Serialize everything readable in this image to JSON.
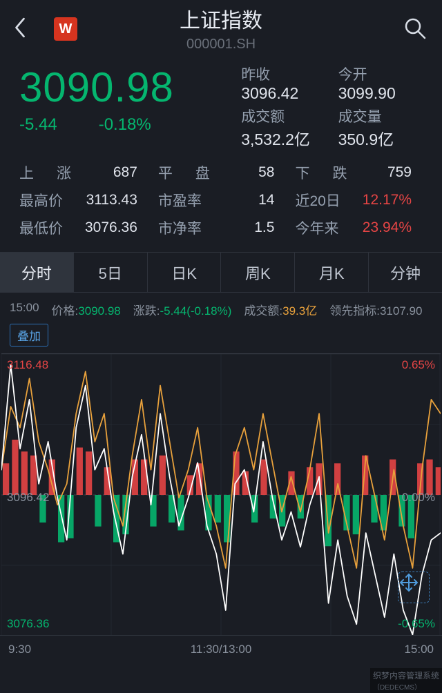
{
  "header": {
    "logo_letter": "W",
    "title": "上证指数",
    "code": "000001.SH"
  },
  "quote": {
    "price": "3090.98",
    "change_abs": "-5.44",
    "change_pct": "-0.18%",
    "price_color": "#05b66f",
    "side": {
      "prev_close_label": "昨收",
      "prev_close": "3096.42",
      "open_label": "今开",
      "open": "3099.90",
      "turnover_label": "成交额",
      "turnover": "3,532.2亿",
      "volume_label": "成交量",
      "volume": "350.9亿"
    },
    "grid": {
      "up_label": "上　涨",
      "up": "687",
      "flat_label": "平　盘",
      "flat": "58",
      "down_label": "下　跌",
      "down": "759",
      "high_label": "最高价",
      "high": "3113.43",
      "pe_label": "市盈率",
      "pe": "14",
      "d20_label": "近20日",
      "d20": "12.17%",
      "low_label": "最低价",
      "low": "3076.36",
      "pb_label": "市净率",
      "pb": "1.5",
      "ytd_label": "今年来",
      "ytd": "23.94%"
    }
  },
  "tabs": {
    "items": [
      "分时",
      "5日",
      "日K",
      "周K",
      "月K",
      "分钟"
    ],
    "active_index": 0
  },
  "info_line": {
    "time_label": "15:00",
    "price_label": "价格:",
    "price_val": "3090.98",
    "chg_label": "涨跌:",
    "chg_val": "-5.44(-0.18%)",
    "turnover_label": "成交额:",
    "turnover_val": "39.3亿",
    "lead_label": "领先指标:",
    "lead_val": "3107.90"
  },
  "overlay_btn": "叠加",
  "chart": {
    "type": "intraday-line",
    "background_color": "#1a1d24",
    "grid_color": "#2e333c",
    "center_value": 3096.42,
    "ylim": [
      3076.36,
      3116.48
    ],
    "pct_range": "0.65%",
    "x_labels": {
      "start": "9:30",
      "mid": "11:30/13:00",
      "end": "15:00"
    },
    "top_left": "3116.48",
    "top_right": "0.65%",
    "mid_left": "3096.42",
    "mid_right": "0.00%",
    "bot_left": "3076.36",
    "bot_right": "-0.65%",
    "series": {
      "price_line": {
        "color": "#ffffff",
        "width": 1.8,
        "values": [
          3100,
          3115,
          3103,
          3110,
          3098,
          3104,
          3096,
          3090,
          3106,
          3112,
          3100,
          3103,
          3094,
          3088,
          3099,
          3105,
          3095,
          3108,
          3099,
          3092,
          3096,
          3101,
          3092,
          3088,
          3080,
          3098,
          3100,
          3094,
          3104,
          3096,
          3090,
          3094,
          3089,
          3095,
          3099,
          3081,
          3090,
          3082,
          3078,
          3091,
          3085,
          3079,
          3088,
          3080,
          3076.5,
          3085,
          3090,
          3091
        ]
      },
      "lead_line": {
        "color": "#e8a13c",
        "width": 1.8,
        "values": [
          3100,
          3109,
          3106,
          3113,
          3104,
          3100,
          3095,
          3098,
          3108,
          3114,
          3104,
          3108,
          3096,
          3092,
          3102,
          3110,
          3100,
          3112,
          3104,
          3096,
          3100,
          3106,
          3096,
          3092,
          3086,
          3102,
          3106,
          3100,
          3108,
          3101,
          3094,
          3099,
          3094,
          3100,
          3108,
          3091,
          3098,
          3092,
          3086,
          3102,
          3096,
          3090,
          3100,
          3092,
          3086,
          3100,
          3110,
          3108
        ]
      },
      "volume_bars": {
        "up_color": "#e64545",
        "down_color": "#05b66f",
        "values": [
          40,
          70,
          55,
          50,
          -35,
          45,
          -60,
          -55,
          60,
          55,
          -40,
          35,
          -60,
          -50,
          45,
          45,
          -40,
          50,
          -35,
          -45,
          25,
          40,
          -45,
          -35,
          -60,
          55,
          30,
          -35,
          45,
          -30,
          -40,
          30,
          -30,
          35,
          40,
          -65,
          40,
          -45,
          -50,
          50,
          -35,
          -45,
          45,
          -40,
          -55,
          40,
          45,
          35
        ]
      }
    }
  },
  "footer_mark": "织梦内容管理系统",
  "footer_sub": "（DEDECMS）"
}
